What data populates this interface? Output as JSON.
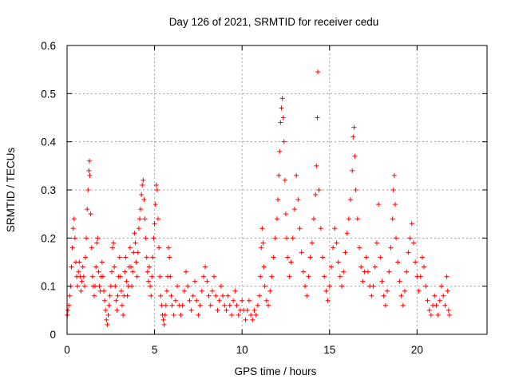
{
  "chart_data": {
    "type": "scatter",
    "title": "Day 126 of 2021, SRMTID for receiver cedu",
    "xlabel": "GPS time / hours",
    "ylabel": "SRMTID / TECUs",
    "xlim": [
      0,
      24
    ],
    "ylim": [
      0,
      0.6
    ],
    "x_ticks": [
      0,
      5,
      10,
      15,
      20
    ],
    "x_tick_labels": [
      "0",
      "5",
      "10",
      "15",
      "20"
    ],
    "y_ticks": [
      0,
      0.1,
      0.2,
      0.3,
      0.4,
      0.5,
      0.6
    ],
    "y_tick_labels": [
      "0",
      "0.1",
      "0.2",
      "0.3",
      "0.4",
      "0.5",
      "0.6"
    ],
    "grid": true,
    "marker": "+",
    "color": "#ff0000",
    "series": [
      {
        "name": "SRMTID",
        "points": [
          [
            0.02,
            0.04
          ],
          [
            0.05,
            0.05
          ],
          [
            0.1,
            0.06
          ],
          [
            0.15,
            0.08
          ],
          [
            0.2,
            0.1
          ],
          [
            0.25,
            0.14
          ],
          [
            0.3,
            0.18
          ],
          [
            0.35,
            0.22
          ],
          [
            0.4,
            0.24
          ],
          [
            0.45,
            0.2
          ],
          [
            0.5,
            0.15
          ],
          [
            0.55,
            0.12
          ],
          [
            0.6,
            0.1
          ],
          [
            0.65,
            0.13
          ],
          [
            0.7,
            0.15
          ],
          [
            0.75,
            0.12
          ],
          [
            0.8,
            0.09
          ],
          [
            0.85,
            0.11
          ],
          [
            0.9,
            0.14
          ],
          [
            0.95,
            0.12
          ],
          [
            1.0,
            0.1
          ],
          [
            1.05,
            0.16
          ],
          [
            1.1,
            0.2
          ],
          [
            1.15,
            0.26
          ],
          [
            1.2,
            0.3
          ],
          [
            1.25,
            0.34
          ],
          [
            1.28,
            0.36
          ],
          [
            1.3,
            0.33
          ],
          [
            1.35,
            0.25
          ],
          [
            1.4,
            0.18
          ],
          [
            1.45,
            0.12
          ],
          [
            1.5,
            0.1
          ],
          [
            1.55,
            0.08
          ],
          [
            1.6,
            0.1
          ],
          [
            1.65,
            0.14
          ],
          [
            1.7,
            0.19
          ],
          [
            1.75,
            0.2
          ],
          [
            1.8,
            0.13
          ],
          [
            1.85,
            0.1
          ],
          [
            1.9,
            0.09
          ],
          [
            1.95,
            0.12
          ],
          [
            2.0,
            0.15
          ],
          [
            2.05,
            0.12
          ],
          [
            2.1,
            0.09
          ],
          [
            2.15,
            0.07
          ],
          [
            2.2,
            0.05
          ],
          [
            2.25,
            0.03
          ],
          [
            2.3,
            0.02
          ],
          [
            2.35,
            0.04
          ],
          [
            2.4,
            0.06
          ],
          [
            2.45,
            0.08
          ],
          [
            2.5,
            0.1
          ],
          [
            2.55,
            0.13
          ],
          [
            2.6,
            0.18
          ],
          [
            2.65,
            0.19
          ],
          [
            2.7,
            0.14
          ],
          [
            2.75,
            0.1
          ],
          [
            2.8,
            0.07
          ],
          [
            2.85,
            0.05
          ],
          [
            2.9,
            0.08
          ],
          [
            2.95,
            0.12
          ],
          [
            3.0,
            0.16
          ],
          [
            3.05,
            0.12
          ],
          [
            3.1,
            0.09
          ],
          [
            3.15,
            0.06
          ],
          [
            3.2,
            0.04
          ],
          [
            3.25,
            0.08
          ],
          [
            3.3,
            0.13
          ],
          [
            3.35,
            0.16
          ],
          [
            3.4,
            0.11
          ],
          [
            3.45,
            0.08
          ],
          [
            3.5,
            0.1
          ],
          [
            3.55,
            0.14
          ],
          [
            3.6,
            0.18
          ],
          [
            3.65,
            0.14
          ],
          [
            3.7,
            0.1
          ],
          [
            3.75,
            0.13
          ],
          [
            3.8,
            0.17
          ],
          [
            3.85,
            0.21
          ],
          [
            3.9,
            0.19
          ],
          [
            3.95,
            0.15
          ],
          [
            4.0,
            0.12
          ],
          [
            4.05,
            0.17
          ],
          [
            4.1,
            0.22
          ],
          [
            4.15,
            0.24
          ],
          [
            4.2,
            0.26
          ],
          [
            4.25,
            0.29
          ],
          [
            4.3,
            0.31
          ],
          [
            4.35,
            0.32
          ],
          [
            4.4,
            0.28
          ],
          [
            4.45,
            0.24
          ],
          [
            4.5,
            0.2
          ],
          [
            4.55,
            0.16
          ],
          [
            4.6,
            0.13
          ],
          [
            4.65,
            0.11
          ],
          [
            4.7,
            0.14
          ],
          [
            4.75,
            0.1
          ],
          [
            4.8,
            0.08
          ],
          [
            4.85,
            0.12
          ],
          [
            4.9,
            0.16
          ],
          [
            4.95,
            0.2
          ],
          [
            5.0,
            0.23
          ],
          [
            5.05,
            0.27
          ],
          [
            5.1,
            0.31
          ],
          [
            5.15,
            0.3
          ],
          [
            5.2,
            0.24
          ],
          [
            5.25,
            0.18
          ],
          [
            5.3,
            0.12
          ],
          [
            5.35,
            0.08
          ],
          [
            5.4,
            0.06
          ],
          [
            5.45,
            0.04
          ],
          [
            5.5,
            0.03
          ],
          [
            5.55,
            0.02
          ],
          [
            5.6,
            0.04
          ],
          [
            5.65,
            0.06
          ],
          [
            5.7,
            0.09
          ],
          [
            5.75,
            0.12
          ],
          [
            5.8,
            0.18
          ],
          [
            5.85,
            0.16
          ],
          [
            5.9,
            0.12
          ],
          [
            5.95,
            0.08
          ],
          [
            6.0,
            0.06
          ],
          [
            6.1,
            0.04
          ],
          [
            6.2,
            0.07
          ],
          [
            6.3,
            0.1
          ],
          [
            6.4,
            0.06
          ],
          [
            6.5,
            0.04
          ],
          [
            6.6,
            0.06
          ],
          [
            6.7,
            0.09
          ],
          [
            6.8,
            0.13
          ],
          [
            6.9,
            0.1
          ],
          [
            7.0,
            0.07
          ],
          [
            7.1,
            0.05
          ],
          [
            7.2,
            0.08
          ],
          [
            7.3,
            0.11
          ],
          [
            7.4,
            0.07
          ],
          [
            7.5,
            0.04
          ],
          [
            7.6,
            0.06
          ],
          [
            7.7,
            0.09
          ],
          [
            7.8,
            0.12
          ],
          [
            7.9,
            0.14
          ],
          [
            8.0,
            0.11
          ],
          [
            8.1,
            0.08
          ],
          [
            8.2,
            0.06
          ],
          [
            8.3,
            0.09
          ],
          [
            8.4,
            0.12
          ],
          [
            8.5,
            0.08
          ],
          [
            8.6,
            0.05
          ],
          [
            8.7,
            0.07
          ],
          [
            8.8,
            0.1
          ],
          [
            8.9,
            0.08
          ],
          [
            9.0,
            0.06
          ],
          [
            9.1,
            0.05
          ],
          [
            9.2,
            0.08
          ],
          [
            9.3,
            0.06
          ],
          [
            9.4,
            0.04
          ],
          [
            9.5,
            0.07
          ],
          [
            9.6,
            0.09
          ],
          [
            9.7,
            0.06
          ],
          [
            9.8,
            0.04
          ],
          [
            9.9,
            0.05
          ],
          [
            10.0,
            0.07
          ],
          [
            10.1,
            0.05
          ],
          [
            10.2,
            0.03
          ],
          [
            10.3,
            0.05
          ],
          [
            10.4,
            0.07
          ],
          [
            10.5,
            0.04
          ],
          [
            10.6,
            0.03
          ],
          [
            10.7,
            0.05
          ],
          [
            10.8,
            0.04
          ],
          [
            10.9,
            0.06
          ],
          [
            11.0,
            0.08
          ],
          [
            11.05,
            0.12
          ],
          [
            11.1,
            0.18
          ],
          [
            11.15,
            0.22
          ],
          [
            11.2,
            0.19
          ],
          [
            11.25,
            0.14
          ],
          [
            11.3,
            0.1
          ],
          [
            11.4,
            0.07
          ],
          [
            11.5,
            0.06
          ],
          [
            11.6,
            0.09
          ],
          [
            11.7,
            0.12
          ],
          [
            11.8,
            0.16
          ],
          [
            11.9,
            0.2
          ],
          [
            12.0,
            0.24
          ],
          [
            12.05,
            0.28
          ],
          [
            12.1,
            0.33
          ],
          [
            12.15,
            0.38
          ],
          [
            12.2,
            0.44
          ],
          [
            12.25,
            0.47
          ],
          [
            12.3,
            0.49
          ],
          [
            12.35,
            0.45
          ],
          [
            12.4,
            0.4
          ],
          [
            12.45,
            0.32
          ],
          [
            12.5,
            0.25
          ],
          [
            12.55,
            0.2
          ],
          [
            12.6,
            0.16
          ],
          [
            12.7,
            0.12
          ],
          [
            12.8,
            0.15
          ],
          [
            12.9,
            0.2
          ],
          [
            13.0,
            0.26
          ],
          [
            13.1,
            0.33
          ],
          [
            13.2,
            0.28
          ],
          [
            13.3,
            0.22
          ],
          [
            13.4,
            0.17
          ],
          [
            13.5,
            0.13
          ],
          [
            13.6,
            0.1
          ],
          [
            13.7,
            0.08
          ],
          [
            13.8,
            0.12
          ],
          [
            13.9,
            0.16
          ],
          [
            14.0,
            0.19
          ],
          [
            14.1,
            0.24
          ],
          [
            14.2,
            0.29
          ],
          [
            14.25,
            0.35
          ],
          [
            14.3,
            0.45
          ],
          [
            14.33,
            0.545
          ],
          [
            14.4,
            0.3
          ],
          [
            14.5,
            0.22
          ],
          [
            14.6,
            0.16
          ],
          [
            14.7,
            0.12
          ],
          [
            14.8,
            0.09
          ],
          [
            14.9,
            0.07
          ],
          [
            15.0,
            0.1
          ],
          [
            15.1,
            0.14
          ],
          [
            15.2,
            0.18
          ],
          [
            15.3,
            0.22
          ],
          [
            15.4,
            0.19
          ],
          [
            15.5,
            0.15
          ],
          [
            15.6,
            0.12
          ],
          [
            15.7,
            0.1
          ],
          [
            15.8,
            0.13
          ],
          [
            15.9,
            0.17
          ],
          [
            16.0,
            0.21
          ],
          [
            16.1,
            0.24
          ],
          [
            16.2,
            0.28
          ],
          [
            16.3,
            0.34
          ],
          [
            16.35,
            0.41
          ],
          [
            16.4,
            0.43
          ],
          [
            16.45,
            0.37
          ],
          [
            16.5,
            0.3
          ],
          [
            16.6,
            0.24
          ],
          [
            16.7,
            0.18
          ],
          [
            16.8,
            0.14
          ],
          [
            16.9,
            0.11
          ],
          [
            17.0,
            0.13
          ],
          [
            17.1,
            0.16
          ],
          [
            17.2,
            0.13
          ],
          [
            17.3,
            0.1
          ],
          [
            17.4,
            0.08
          ],
          [
            17.5,
            0.1
          ],
          [
            17.6,
            0.14
          ],
          [
            17.7,
            0.19
          ],
          [
            17.8,
            0.27
          ],
          [
            17.9,
            0.16
          ],
          [
            18.0,
            0.11
          ],
          [
            18.1,
            0.08
          ],
          [
            18.2,
            0.06
          ],
          [
            18.3,
            0.09
          ],
          [
            18.4,
            0.13
          ],
          [
            18.5,
            0.18
          ],
          [
            18.6,
            0.24
          ],
          [
            18.65,
            0.3
          ],
          [
            18.7,
            0.33
          ],
          [
            18.75,
            0.27
          ],
          [
            18.8,
            0.2
          ],
          [
            18.9,
            0.15
          ],
          [
            19.0,
            0.11
          ],
          [
            19.1,
            0.08
          ],
          [
            19.2,
            0.06
          ],
          [
            19.3,
            0.09
          ],
          [
            19.4,
            0.13
          ],
          [
            19.5,
            0.17
          ],
          [
            19.6,
            0.2
          ],
          [
            19.7,
            0.23
          ],
          [
            19.8,
            0.19
          ],
          [
            19.9,
            0.15
          ],
          [
            20.0,
            0.12
          ],
          [
            20.1,
            0.09
          ],
          [
            20.2,
            0.12
          ],
          [
            20.3,
            0.16
          ],
          [
            20.4,
            0.14
          ],
          [
            20.5,
            0.1
          ],
          [
            20.6,
            0.07
          ],
          [
            20.7,
            0.05
          ],
          [
            20.8,
            0.04
          ],
          [
            20.9,
            0.06
          ],
          [
            21.0,
            0.08
          ],
          [
            21.1,
            0.06
          ],
          [
            21.2,
            0.04
          ],
          [
            21.3,
            0.07
          ],
          [
            21.4,
            0.1
          ],
          [
            21.5,
            0.08
          ],
          [
            21.6,
            0.06
          ],
          [
            21.7,
            0.12
          ],
          [
            21.75,
            0.09
          ],
          [
            21.8,
            0.05
          ],
          [
            21.85,
            0.04
          ]
        ]
      }
    ]
  }
}
